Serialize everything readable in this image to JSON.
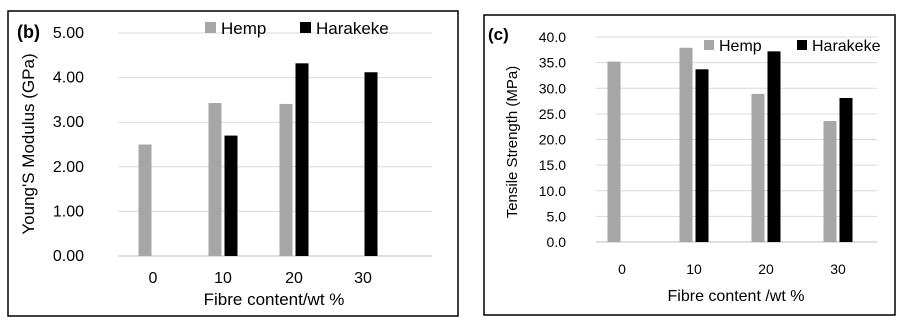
{
  "chart_data": [
    {
      "type": "bar",
      "panel_label": "(b)",
      "title": "",
      "xlabel": "Fibre content/wt %",
      "ylabel": "Young'S Modulus (GPa)",
      "categories": [
        "0",
        "10",
        "20",
        "30"
      ],
      "ylim": [
        0,
        5
      ],
      "yticks": [
        "0.00",
        "1.00",
        "2.00",
        "3.00",
        "4.00",
        "5.00"
      ],
      "grid": true,
      "legend_position": "top-right",
      "series": [
        {
          "name": "Hemp",
          "color": "#a6a6a6",
          "values": [
            2.5,
            3.43,
            3.41,
            null
          ]
        },
        {
          "name": "Harakeke",
          "color": "#000000",
          "values": [
            null,
            2.7,
            4.32,
            4.12
          ]
        }
      ]
    },
    {
      "type": "bar",
      "panel_label": "(c)",
      "title": "",
      "xlabel": "Fibre content /wt %",
      "ylabel": "Tensile Strength (MPa)",
      "categories": [
        "0",
        "10",
        "20",
        "30"
      ],
      "ylim": [
        0,
        40
      ],
      "yticks": [
        "0.0",
        "5.0",
        "10.0",
        "15.0",
        "20.0",
        "25.0",
        "30.0",
        "35.0",
        "40.0"
      ],
      "grid": true,
      "legend_position": "top-right",
      "series": [
        {
          "name": "Hemp",
          "color": "#a6a6a6",
          "values": [
            35.2,
            37.9,
            28.9,
            23.6
          ]
        },
        {
          "name": "Harakeke",
          "color": "#000000",
          "values": [
            null,
            33.7,
            37.2,
            28.1
          ]
        }
      ]
    }
  ]
}
